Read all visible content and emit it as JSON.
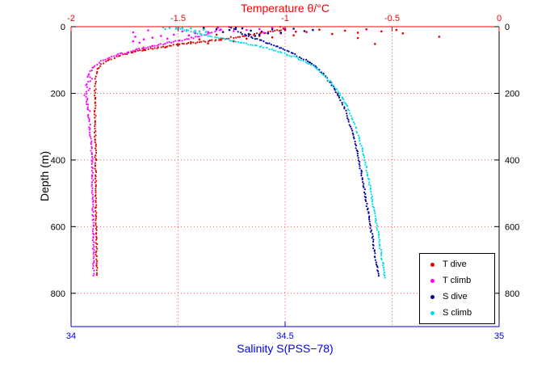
{
  "figure": {
    "title": "Temperature θ/°C",
    "xlabel_bottom": "Salinity S(PSS−78)",
    "ylabel_left": "Depth (m)"
  },
  "chart_data": {
    "type": "scatter",
    "title": "Temperature θ/°C",
    "xlabel": "Salinity S(PSS−78)",
    "ylabel": "Depth (m)",
    "point_format": "[depth_m, value]",
    "axes": {
      "top": {
        "label": "Temperature θ/°C",
        "color": "#ff0000",
        "range": [
          -2,
          0
        ],
        "ticks": [
          -2,
          -1.5,
          -1,
          -0.5,
          0
        ],
        "tick_labels": [
          "-2",
          "-1.5",
          "-1",
          "-0.5",
          "0"
        ],
        "grid_ticks": [
          -1.5,
          -1,
          -0.5
        ]
      },
      "bottom": {
        "label": "Salinity S(PSS−78)",
        "color": "#0000ee",
        "range": [
          34,
          35
        ],
        "ticks": [
          34,
          34.5,
          35
        ],
        "tick_labels": [
          "34",
          "34.5",
          "35"
        ]
      },
      "left": {
        "label": "Depth (m)",
        "color": "#000000",
        "range": [
          0,
          900
        ],
        "ticks": [
          0,
          200,
          400,
          600,
          800
        ],
        "tick_labels": [
          "0",
          "200",
          "400",
          "600",
          "800"
        ],
        "grid_ticks": [
          200,
          400,
          600,
          800
        ]
      },
      "right": {
        "color": "#000000",
        "ticks": [
          0,
          200,
          400,
          600,
          800
        ],
        "tick_labels": [
          "0",
          "200",
          "400",
          "600",
          "800"
        ]
      }
    },
    "grid": {
      "style": "dotted",
      "color": "#ff5555"
    },
    "legend": {
      "position": "bottom-right",
      "items": [
        "T dive",
        "T climb",
        "S dive",
        "S climb"
      ]
    },
    "series": [
      {
        "name": "T dive",
        "axis": "temp",
        "color": "#e00000",
        "profile": [
          [
            0,
            -1.02
          ],
          [
            6,
            -1.0
          ],
          [
            12,
            -1.04
          ],
          [
            18,
            -1.1
          ],
          [
            24,
            -1.16
          ],
          [
            30,
            -1.22
          ],
          [
            36,
            -1.28
          ],
          [
            42,
            -1.34
          ],
          [
            48,
            -1.42
          ],
          [
            54,
            -1.5
          ],
          [
            60,
            -1.57
          ],
          [
            66,
            -1.63
          ],
          [
            72,
            -1.68
          ],
          [
            78,
            -1.72
          ],
          [
            84,
            -1.76
          ],
          [
            90,
            -1.79
          ],
          [
            96,
            -1.81
          ],
          [
            102,
            -1.83
          ],
          [
            110,
            -1.85
          ],
          [
            118,
            -1.865
          ],
          [
            126,
            -1.875
          ],
          [
            134,
            -1.88
          ],
          [
            142,
            -1.883
          ],
          [
            150,
            -1.885
          ],
          [
            165,
            -1.886
          ],
          [
            180,
            -1.887
          ],
          [
            200,
            -1.888
          ],
          [
            225,
            -1.886
          ],
          [
            250,
            -1.888
          ],
          [
            275,
            -1.887
          ],
          [
            300,
            -1.888
          ],
          [
            330,
            -1.887
          ],
          [
            360,
            -1.886
          ],
          [
            390,
            -1.886
          ],
          [
            420,
            -1.885
          ],
          [
            450,
            -1.885
          ],
          [
            480,
            -1.884
          ],
          [
            510,
            -1.884
          ],
          [
            540,
            -1.883
          ],
          [
            570,
            -1.883
          ],
          [
            600,
            -1.882
          ],
          [
            630,
            -1.882
          ],
          [
            660,
            -1.881
          ],
          [
            690,
            -1.881
          ],
          [
            720,
            -1.88
          ],
          [
            750,
            -1.88
          ]
        ],
        "scatter": [
          [
            10,
            -0.48
          ],
          [
            20,
            -0.45
          ],
          [
            30,
            -0.28
          ],
          [
            14,
            -0.55
          ],
          [
            8,
            -0.62
          ],
          [
            18,
            -0.66
          ],
          [
            12,
            -0.72
          ],
          [
            22,
            -0.78
          ],
          [
            9,
            -0.84
          ],
          [
            16,
            -0.9
          ],
          [
            26,
            -0.96
          ],
          [
            20,
            -1.02
          ],
          [
            32,
            -1.06
          ],
          [
            28,
            -1.12
          ],
          [
            36,
            -1.18
          ],
          [
            44,
            -1.24
          ],
          [
            40,
            -1.3
          ],
          [
            50,
            -1.36
          ],
          [
            46,
            -1.44
          ],
          [
            56,
            -1.5
          ],
          [
            62,
            -1.56
          ],
          [
            58,
            -1.62
          ],
          [
            68,
            -1.66
          ],
          [
            74,
            -1.7
          ],
          [
            52,
            -0.58
          ],
          [
            34,
            -0.66
          ],
          [
            24,
            -1.32
          ],
          [
            38,
            -1.4
          ],
          [
            15,
            -0.95
          ]
        ]
      },
      {
        "name": "T climb",
        "axis": "temp",
        "color": "#ff00ff",
        "profile": [
          [
            0,
            -1.32
          ],
          [
            8,
            -1.3
          ],
          [
            16,
            -1.33
          ],
          [
            24,
            -1.37
          ],
          [
            32,
            -1.42
          ],
          [
            40,
            -1.48
          ],
          [
            48,
            -1.54
          ],
          [
            56,
            -1.6
          ],
          [
            64,
            -1.66
          ],
          [
            72,
            -1.71
          ],
          [
            80,
            -1.76
          ],
          [
            88,
            -1.8
          ],
          [
            96,
            -1.83
          ],
          [
            104,
            -1.86
          ],
          [
            112,
            -1.88
          ],
          [
            120,
            -1.895
          ],
          [
            130,
            -1.905
          ],
          [
            140,
            -1.915
          ],
          [
            150,
            -1.92
          ],
          [
            158,
            -1.905
          ],
          [
            166,
            -1.92
          ],
          [
            175,
            -1.93
          ],
          [
            185,
            -1.915
          ],
          [
            195,
            -1.925
          ],
          [
            205,
            -1.935
          ],
          [
            215,
            -1.92
          ],
          [
            225,
            -1.93
          ],
          [
            235,
            -1.92
          ],
          [
            245,
            -1.925
          ],
          [
            255,
            -1.915
          ],
          [
            270,
            -1.92
          ],
          [
            285,
            -1.912
          ],
          [
            300,
            -1.915
          ],
          [
            330,
            -1.908
          ],
          [
            360,
            -1.905
          ],
          [
            390,
            -1.903
          ],
          [
            420,
            -1.902
          ],
          [
            450,
            -1.9
          ],
          [
            480,
            -1.9
          ],
          [
            510,
            -1.899
          ],
          [
            540,
            -1.898
          ],
          [
            570,
            -1.898
          ],
          [
            600,
            -1.897
          ],
          [
            630,
            -1.896
          ],
          [
            660,
            -1.896
          ],
          [
            690,
            -1.895
          ],
          [
            720,
            -1.895
          ],
          [
            752,
            -1.894
          ]
        ],
        "scatter": [
          [
            4,
            -1.06
          ],
          [
            7,
            -1.12
          ],
          [
            10,
            -1.18
          ],
          [
            13,
            -1.24
          ],
          [
            9,
            -1.3
          ],
          [
            16,
            -1.36
          ],
          [
            20,
            -1.42
          ],
          [
            14,
            -1.48
          ],
          [
            24,
            -1.52
          ],
          [
            28,
            -1.58
          ],
          [
            33,
            -1.62
          ],
          [
            38,
            -1.66
          ],
          [
            30,
            -1.7
          ],
          [
            17,
            -1.71
          ],
          [
            44,
            -1.71
          ],
          [
            18,
            -1.1
          ],
          [
            6,
            -1.0
          ],
          [
            26,
            -1.45
          ],
          [
            36,
            -1.55
          ],
          [
            48,
            -1.68
          ],
          [
            11,
            -1.64
          ]
        ]
      },
      {
        "name": "S dive",
        "axis": "sal",
        "color": "#0000a0",
        "profile": [
          [
            0,
            34.37
          ],
          [
            10,
            34.385
          ],
          [
            20,
            34.4
          ],
          [
            30,
            34.42
          ],
          [
            40,
            34.44
          ],
          [
            50,
            34.46
          ],
          [
            60,
            34.482
          ],
          [
            70,
            34.5
          ],
          [
            80,
            34.518
          ],
          [
            90,
            34.533
          ],
          [
            100,
            34.548
          ],
          [
            110,
            34.56
          ],
          [
            120,
            34.571
          ],
          [
            130,
            34.58
          ],
          [
            140,
            34.588
          ],
          [
            150,
            34.595
          ],
          [
            165,
            34.604
          ],
          [
            180,
            34.612
          ],
          [
            200,
            34.622
          ],
          [
            220,
            34.63
          ],
          [
            240,
            34.637
          ],
          [
            260,
            34.643
          ],
          [
            280,
            34.648
          ],
          [
            300,
            34.653
          ],
          [
            325,
            34.659
          ],
          [
            350,
            34.664
          ],
          [
            375,
            34.668
          ],
          [
            400,
            34.672
          ],
          [
            430,
            34.677
          ],
          [
            460,
            34.681
          ],
          [
            490,
            34.685
          ],
          [
            520,
            34.689
          ],
          [
            550,
            34.693
          ],
          [
            580,
            34.697
          ],
          [
            610,
            34.701
          ],
          [
            640,
            34.705
          ],
          [
            670,
            34.708
          ],
          [
            700,
            34.712
          ],
          [
            730,
            34.716
          ],
          [
            755,
            34.719
          ]
        ],
        "scatter": [
          [
            4,
            34.31
          ],
          [
            7,
            34.34
          ],
          [
            10,
            34.37
          ],
          [
            5,
            34.4
          ],
          [
            12,
            34.42
          ],
          [
            15,
            34.445
          ],
          [
            8,
            34.47
          ],
          [
            18,
            34.49
          ],
          [
            6,
            34.52
          ],
          [
            13,
            34.545
          ],
          [
            20,
            34.46
          ],
          [
            24,
            34.44
          ],
          [
            3,
            34.385
          ],
          [
            16,
            34.355
          ],
          [
            22,
            34.415
          ],
          [
            10,
            34.565
          ],
          [
            28,
            34.43
          ],
          [
            9,
            34.5
          ]
        ]
      },
      {
        "name": "S climb",
        "axis": "sal",
        "color": "#00dde6",
        "profile": [
          [
            0,
            34.245
          ],
          [
            8,
            34.26
          ],
          [
            16,
            34.285
          ],
          [
            24,
            34.31
          ],
          [
            32,
            34.34
          ],
          [
            40,
            34.37
          ],
          [
            48,
            34.4
          ],
          [
            56,
            34.43
          ],
          [
            64,
            34.455
          ],
          [
            72,
            34.478
          ],
          [
            80,
            34.498
          ],
          [
            90,
            34.52
          ],
          [
            100,
            34.538
          ],
          [
            110,
            34.553
          ],
          [
            120,
            34.566
          ],
          [
            130,
            34.577
          ],
          [
            140,
            34.586
          ],
          [
            150,
            34.594
          ],
          [
            165,
            34.605
          ],
          [
            180,
            34.615
          ],
          [
            200,
            34.627
          ],
          [
            220,
            34.637
          ],
          [
            240,
            34.645
          ],
          [
            260,
            34.652
          ],
          [
            280,
            34.659
          ],
          [
            300,
            34.665
          ],
          [
            325,
            34.671
          ],
          [
            350,
            34.677
          ],
          [
            375,
            34.682
          ],
          [
            400,
            34.686
          ],
          [
            430,
            34.691
          ],
          [
            460,
            34.696
          ],
          [
            490,
            34.7
          ],
          [
            520,
            34.704
          ],
          [
            550,
            34.708
          ],
          [
            580,
            34.712
          ],
          [
            610,
            34.716
          ],
          [
            640,
            34.72
          ],
          [
            670,
            34.723
          ],
          [
            700,
            34.727
          ],
          [
            730,
            34.73
          ],
          [
            760,
            34.733
          ]
        ],
        "scatter": [
          [
            2,
            34.215
          ],
          [
            4,
            34.23
          ],
          [
            6,
            34.245
          ],
          [
            3,
            34.26
          ],
          [
            8,
            34.25
          ],
          [
            10,
            34.27
          ],
          [
            5,
            34.28
          ],
          [
            12,
            34.29
          ],
          [
            7,
            34.22
          ],
          [
            14,
            34.3
          ],
          [
            9,
            34.31
          ],
          [
            16,
            34.315
          ]
        ]
      }
    ]
  }
}
